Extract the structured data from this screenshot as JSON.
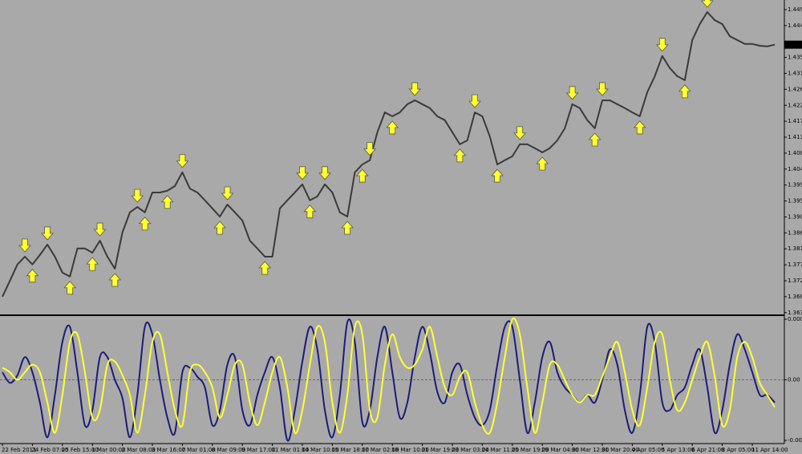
{
  "chart_data": {
    "type": "stock-panels",
    "categories": [
      "22 Feb 2011",
      null,
      null,
      null,
      "24 Feb 07:00",
      null,
      null,
      null,
      "25 Feb 15:00",
      null,
      null,
      null,
      "1 Mar 00:00",
      null,
      null,
      null,
      "2 Mar 08:00",
      null,
      null,
      null,
      "3 Mar 16:00",
      null,
      null,
      null,
      "7 Mar 01:00",
      null,
      null,
      null,
      "8 Mar 09:00",
      null,
      null,
      null,
      "9 Mar 17:00",
      null,
      null,
      null,
      "11 Mar 01:00",
      null,
      null,
      null,
      "14 Mar 10:00",
      null,
      null,
      null,
      "15 Mar 18:00",
      null,
      null,
      null,
      "17 Mar 02:00",
      null,
      null,
      null,
      "18 Mar 10:00",
      null,
      null,
      null,
      "21 Mar 19:00",
      null,
      null,
      null,
      "23 Mar 03:00",
      null,
      null,
      null,
      "24 Mar 11:00",
      null,
      null,
      null,
      "25 Mar 19:00",
      null,
      null,
      null,
      "29 Mar 04:00",
      null,
      null,
      null,
      "30 Mar 12:00",
      null,
      null,
      null,
      "31 Mar 20:00",
      null,
      null,
      null,
      "4 Apr 05:00",
      null,
      null,
      null,
      "5 Apr 13:00",
      null,
      null,
      null,
      "6 Apr 21:00",
      null,
      null,
      null,
      "8 Apr 05:00",
      null,
      null,
      null,
      "11 Apr 14:00",
      null,
      null,
      null
    ],
    "price": {
      "ylim": [
        1.363,
        1.4517
      ],
      "yticks": [
        1.3635,
        {
          "value": 1.368,
          "label": "1.3680"
        },
        1.3725,
        {
          "value": 1.377,
          "label": "1.3770"
        },
        1.3815,
        {
          "value": 1.386,
          "label": "1.3860"
        },
        1.3905,
        {
          "value": 1.395,
          "label": "1.3950"
        },
        1.3995,
        {
          "value": 1.404,
          "label": "1.4040"
        },
        1.4085,
        {
          "value": 1.413,
          "label": "1.4130"
        },
        1.4175,
        {
          "value": 1.422,
          "label": "1.4220"
        },
        1.4265,
        {
          "value": 1.431,
          "label": "1.4310"
        },
        1.4355,
        1.4445,
        {
          "value": 1.449,
          "label": "1.4490"
        }
      ],
      "last_price": 1.4391,
      "color": "#3a3a3a",
      "values": [
        1.368,
        1.3725,
        1.3771,
        1.3793,
        1.3771,
        1.3798,
        1.3827,
        1.3793,
        1.3748,
        1.3737,
        1.3816,
        1.3816,
        1.3804,
        1.3838,
        1.3793,
        1.3759,
        1.3861,
        1.3918,
        1.3933,
        1.3918,
        1.3974,
        1.3974,
        1.3979,
        1.3992,
        1.4031,
        1.3985,
        1.3974,
        1.3952,
        1.3929,
        1.3906,
        1.394,
        1.3918,
        1.3895,
        1.3838,
        1.3816,
        1.3793,
        1.3793,
        1.3929,
        1.3952,
        1.3974,
        1.3997,
        1.3952,
        1.3963,
        1.3997,
        1.3974,
        1.3918,
        1.3906,
        1.4031,
        1.4053,
        1.4065,
        1.4144,
        1.42,
        1.4189,
        1.42,
        1.4223,
        1.4234,
        1.4223,
        1.4212,
        1.4189,
        1.4178,
        1.4144,
        1.411,
        1.4121,
        1.42,
        1.4189,
        1.4132,
        1.4053,
        1.4065,
        1.4076,
        1.411,
        1.411,
        1.4099,
        1.4087,
        1.4099,
        1.4121,
        1.4155,
        1.4223,
        1.4212,
        1.4178,
        1.4155,
        1.4234,
        1.4234,
        1.4223,
        1.4212,
        1.42,
        1.4189,
        1.4257,
        1.4302,
        1.4359,
        1.4325,
        1.4302,
        1.4291,
        1.4404,
        1.4449,
        1.4483,
        1.446,
        1.4449,
        1.4415,
        1.4404,
        1.4393,
        1.4393,
        1.4388,
        1.4386,
        1.4391
      ],
      "signal_color": "#ffff33",
      "down_signals": [
        {
          "x": 3,
          "y": 1.3793
        },
        {
          "x": 6,
          "y": 1.3827
        },
        {
          "x": 13,
          "y": 1.3838
        },
        {
          "x": 18,
          "y": 1.3933
        },
        {
          "x": 24,
          "y": 1.4031
        },
        {
          "x": 30,
          "y": 1.394
        },
        {
          "x": 40,
          "y": 1.3997
        },
        {
          "x": 43,
          "y": 1.3997
        },
        {
          "x": 49,
          "y": 1.4065
        },
        {
          "x": 55,
          "y": 1.4234
        },
        {
          "x": 63,
          "y": 1.42
        },
        {
          "x": 69,
          "y": 1.411
        },
        {
          "x": 76,
          "y": 1.4223
        },
        {
          "x": 80,
          "y": 1.4234
        },
        {
          "x": 88,
          "y": 1.4359
        },
        {
          "x": 94,
          "y": 1.4483
        }
      ],
      "up_signals": [
        {
          "x": 4,
          "y": 1.3771
        },
        {
          "x": 9,
          "y": 1.3737
        },
        {
          "x": 12,
          "y": 1.3804
        },
        {
          "x": 15,
          "y": 1.3759
        },
        {
          "x": 19,
          "y": 1.3918
        },
        {
          "x": 22,
          "y": 1.3979
        },
        {
          "x": 29,
          "y": 1.3906
        },
        {
          "x": 35,
          "y": 1.3793
        },
        {
          "x": 41,
          "y": 1.3952
        },
        {
          "x": 46,
          "y": 1.3906
        },
        {
          "x": 48,
          "y": 1.4053
        },
        {
          "x": 52,
          "y": 1.4189
        },
        {
          "x": 61,
          "y": 1.411
        },
        {
          "x": 66,
          "y": 1.4053
        },
        {
          "x": 72,
          "y": 1.4087
        },
        {
          "x": 79,
          "y": 1.4155
        },
        {
          "x": 85,
          "y": 1.4189
        },
        {
          "x": 91,
          "y": 1.4291
        }
      ]
    },
    "oscillator": {
      "ylim": [
        -0.0004,
        0.0004
      ],
      "yticks": [
        0.0004,
        {
          "value": 0,
          "label": "0.00"
        },
        -0.0004
      ],
      "zero_line": true,
      "series": [
        {
          "color": "#1c1c78",
          "values": [
            5e-05,
            -2e-05,
            3e-05,
            0.00015,
            5e-05,
            -0.00015,
            -0.00038,
            -0.0001,
            0.00025,
            0.00035,
            5e-05,
            -0.0003,
            -0.0002,
            0.00015,
            0.00015,
            0,
            -0.00012,
            -0.00038,
            -0.0001,
            0.00035,
            0.0003,
            0,
            -0.00025,
            -0.00035,
            5e-05,
            8e-05,
            2e-05,
            -5e-05,
            -0.0003,
            -0.0002,
            0.0001,
            0.00015,
            -0.0002,
            -0.0003,
            -0.0001,
            5e-05,
            0.00015,
            -5e-05,
            -0.0004,
            -0.0002,
            0.00012,
            0.00035,
            0.0002,
            -0.0002,
            -0.00038,
            -0.0001,
            0.00038,
            0.00025,
            -0.00028,
            -0.0002,
            0.00015,
            0.00035,
            5e-05,
            -0.00025,
            -0.00015,
            0.00015,
            0.00035,
            0.00018,
            -8e-05,
            -0.00015,
            5e-05,
            0.0001,
            -0.0001,
            -0.00025,
            -0.0003,
            -0.0002,
            0.0001,
            0.00035,
            0.00035,
            0,
            -0.00035,
            -0.00015,
            0.00015,
            0.00025,
            5e-05,
            -5e-05,
            -0.0001,
            -0.00015,
            -0.0001,
            -0.00015,
            0,
            0.0002,
            0.0001,
            -0.0002,
            -0.00035,
            -0.0001,
            0.00035,
            0.00025,
            -0.00015,
            -0.0002,
            -0.0001,
            -5e-05,
            0.0001,
            0.0002,
            -5e-05,
            -0.00035,
            -0.0002,
            0.0001,
            0.0003,
            0.0002,
            5e-05,
            -0.0001,
            -0.0001,
            -0.00015
          ]
        },
        {
          "color": "#ffff33",
          "values": [
            8e-05,
            5e-05,
            0,
            5e-05,
            0.0001,
            5e-05,
            -0.00015,
            -0.00035,
            -0.0001,
            0.00025,
            0.0003,
            5e-05,
            -0.00025,
            -0.0002,
            0.0001,
            0.00012,
            3e-05,
            -0.0001,
            -0.00035,
            -0.0001,
            0.00025,
            0.0003,
            5e-05,
            -0.0002,
            -0.0003,
            5e-05,
            0.0001,
            5e-05,
            -5e-05,
            -0.00025,
            -0.0001,
            0.0001,
            0.0001,
            -0.00015,
            -0.0003,
            -0.00015,
            5e-05,
            0.00015,
            -5e-05,
            -0.00035,
            -0.0002,
            0.0001,
            0.00035,
            0.00025,
            -0.00015,
            -0.00035,
            -0.0001,
            0.00035,
            0.0003,
            -0.0002,
            -0.00025,
            0.0001,
            0.0003,
            0.00015,
            8e-05,
            0.0001,
            0.0002,
            0.00035,
            0.00015,
            -5e-05,
            -0.0001,
            2e-05,
            5e-05,
            -0.00015,
            -0.0003,
            -0.00035,
            -0.00015,
            0.00015,
            0.0004,
            0.0003,
            -5e-05,
            -0.00035,
            -0.00015,
            0.0001,
            0.0001,
            0,
            -0.0001,
            -0.00015,
            -0.0001,
            -0.0001,
            2e-05,
            0.00015,
            0.00025,
            5e-05,
            -0.0002,
            -0.0003,
            -5e-05,
            0.00025,
            0.0003,
            0,
            -0.0002,
            -0.00015,
            0,
            0.00015,
            0.00025,
            2e-05,
            -0.0003,
            -0.0002,
            0.00015,
            0.00025,
            0.00015,
            -2e-05,
            -0.0001,
            -0.00018
          ]
        }
      ]
    }
  }
}
